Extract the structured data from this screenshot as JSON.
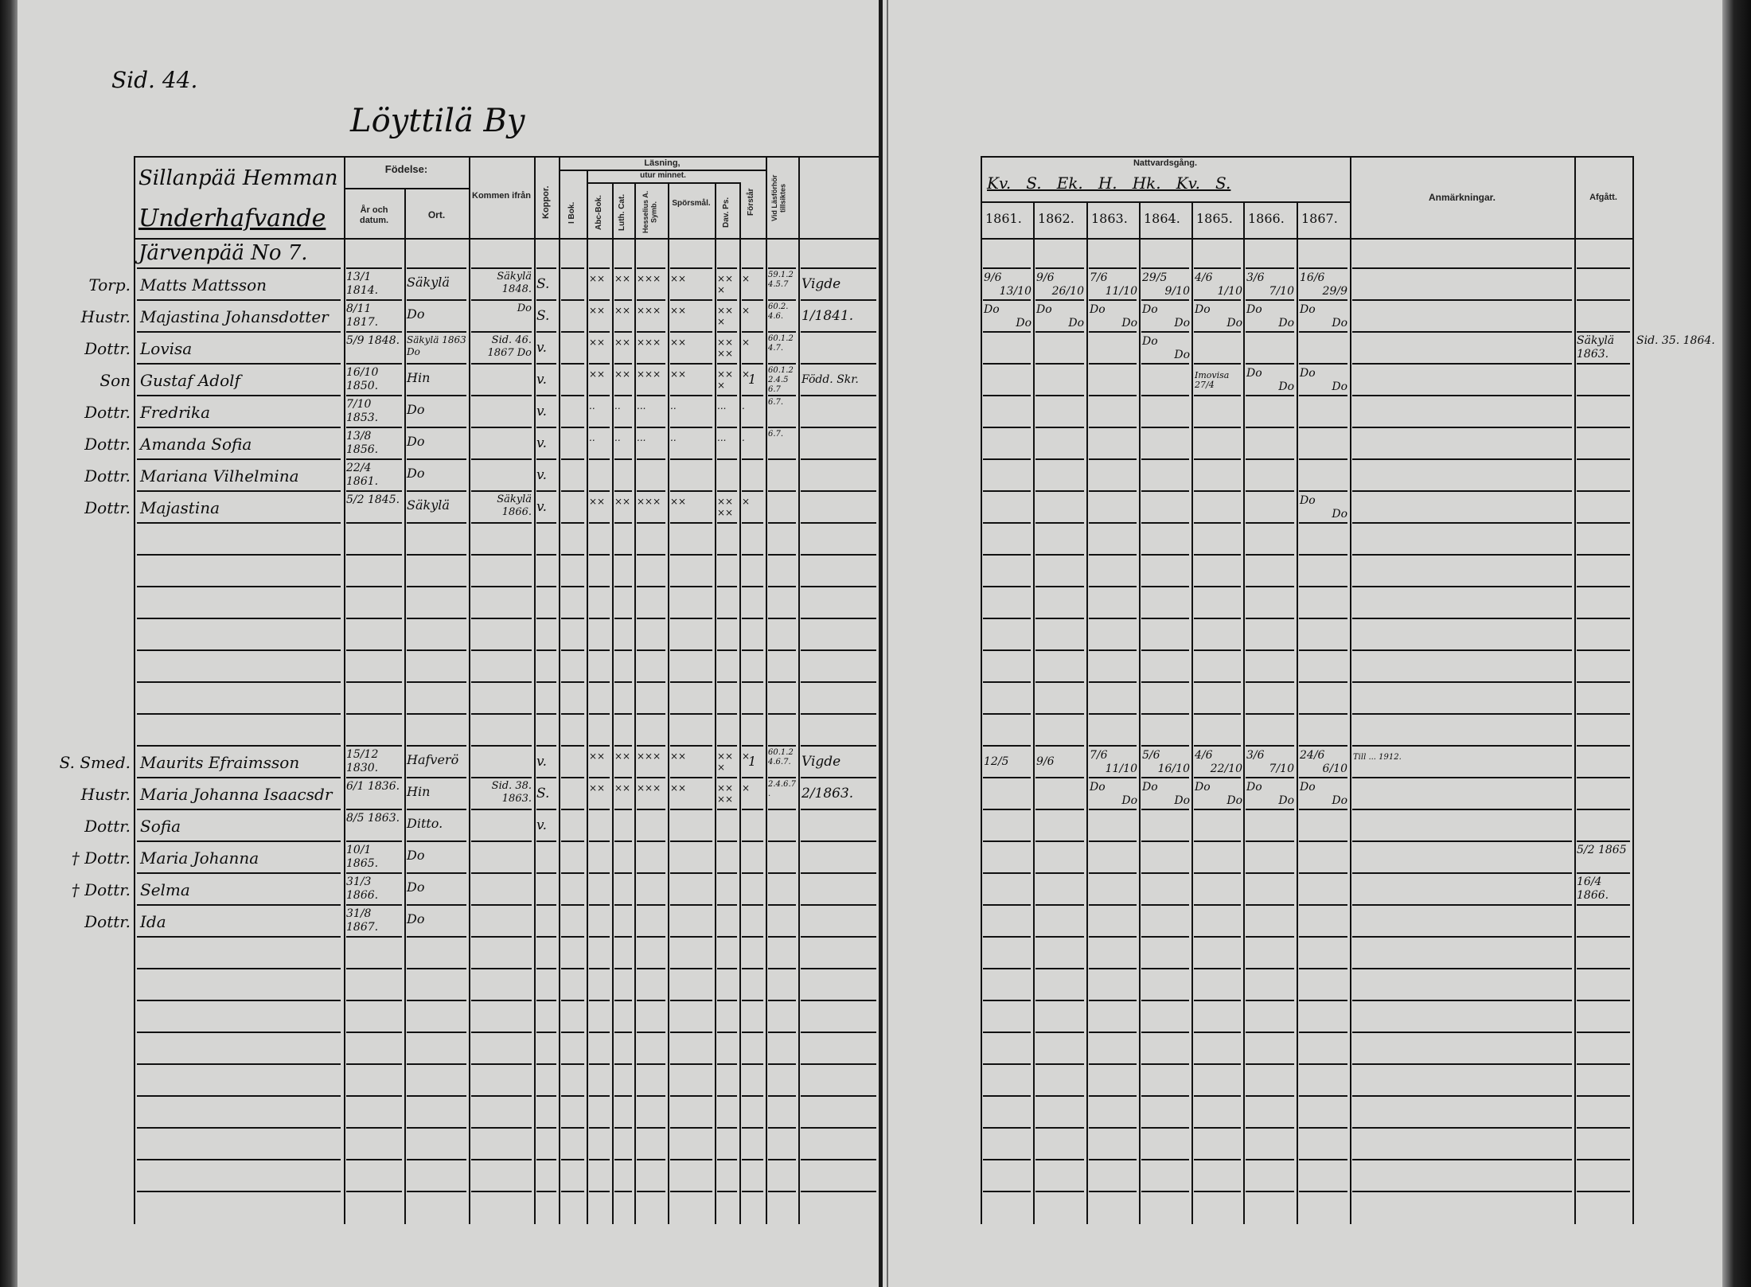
{
  "page_label": "Sid. 44.",
  "village": "Löyttilä By",
  "left_header": {
    "estate": "Sillanpää Hemman",
    "subtitle": "Underhafvande",
    "fodelse": "Födelse:",
    "ar_datum": "År och datum.",
    "ort": "Ort.",
    "kommen": "Kommen ifrån",
    "koppor": "Koppor.",
    "lasning": "Läsning,",
    "utur_minnet": "utur minnet.",
    "i_bok": "I Bok.",
    "abc_bok": "Abc-Bok.",
    "luth_cat": "Luth. Cat.",
    "hesselius": "Hesselius A. Symb.",
    "sporsmal": "Spörsmål.",
    "dav_ps": "Dav. Ps.",
    "forstar": "Förstår",
    "vid_lasforhor": "Vid Läsförhör tillsiktes"
  },
  "right_header": {
    "nattvardsgang": "Nattvardsgång.",
    "markers": "Kv.   S.   Ek.   H.   Hk.   Kv.   S.",
    "years": [
      "1861.",
      "1862.",
      "1863.",
      "1864.",
      "1865.",
      "1866.",
      "1867."
    ],
    "anmarkningar": "Anmärkningar.",
    "afgatt": "Afgått."
  },
  "groups": [
    {
      "title": "Järvenpää No 7.",
      "people": [
        {
          "role": "Torp.",
          "name": "Matts Mattsson",
          "birth": "13/1 1814.",
          "place": "Säkylä",
          "from": "Säkylä 1848.",
          "koppor": "S.",
          "reading": [
            "××",
            "××",
            "×××",
            "××",
            "×××",
            "×"
          ],
          "forstar": "",
          "vid": "59.1.2 4.5.7",
          "note": "Vigde",
          "communion": [
            [
              "9/6",
              "13/10"
            ],
            [
              "9/6",
              "26/10"
            ],
            [
              "7/6",
              "11/10"
            ],
            [
              "29/5",
              "9/10"
            ],
            [
              "4/6",
              "1/10"
            ],
            [
              "3/6",
              "7/10"
            ],
            [
              "16/6",
              "29/9"
            ]
          ],
          "remark": "",
          "departed": ""
        },
        {
          "role": "Hustr.",
          "name": "Majastina Johansdotter",
          "birth": "8/11 1817.",
          "place": "Do",
          "from": "Do",
          "koppor": "S.",
          "reading": [
            "××",
            "××",
            "×××",
            "××",
            "×××",
            "×"
          ],
          "forstar": "",
          "vid": "60.2. 4.6.",
          "note": "1/1841.",
          "communion": [
            [
              "Do",
              "Do"
            ],
            [
              "Do",
              "Do"
            ],
            [
              "Do",
              "Do"
            ],
            [
              "Do",
              "Do"
            ],
            [
              "Do",
              "Do"
            ],
            [
              "Do",
              "Do"
            ],
            [
              "Do",
              "Do"
            ]
          ],
          "remark": "",
          "departed": ""
        },
        {
          "role": "Dottr.",
          "name": "Lovisa",
          "birth": "5/9 1848.",
          "place": "Säkylä 1863 Do",
          "from": "Sid. 46. 1867 Do",
          "koppor": "v.",
          "reading": [
            "××",
            "××",
            "×××",
            "××",
            "××××",
            "×"
          ],
          "forstar": "",
          "vid": "60.1.2 4.7.",
          "note": "",
          "communion": [
            [
              "",
              ""
            ],
            [
              "",
              ""
            ],
            [
              "",
              ""
            ],
            [
              "Do",
              "Do"
            ],
            [
              "",
              ""
            ],
            [
              "",
              ""
            ],
            [
              "",
              ""
            ]
          ],
          "remark": "",
          "departed": "Säkylä 1863.",
          "departed_note": "Sid. 35. 1864."
        },
        {
          "role": "Son",
          "name": "Gustaf Adolf",
          "birth": "16/10 1850.",
          "place": "Hin",
          "from": "",
          "koppor": "v.",
          "reading": [
            "××",
            "××",
            "×××",
            "××",
            "×××",
            "×"
          ],
          "forstar": "1",
          "vid": "60.1.2 2.4.5 6.7",
          "note": "Född. Skr.",
          "communion": [
            [
              "",
              ""
            ],
            [
              "",
              ""
            ],
            [
              "",
              ""
            ],
            [
              "",
              ""
            ],
            [
              "Imovisa 27/4",
              ""
            ],
            [
              "Do",
              "Do"
            ],
            [
              "Do",
              "Do"
            ]
          ],
          "remark": "",
          "departed": ""
        },
        {
          "role": "Dottr.",
          "name": "Fredrika",
          "birth": "7/10 1853.",
          "place": "Do",
          "from": "",
          "koppor": "v.",
          "reading": [
            "..",
            "..",
            "...",
            "..",
            "...",
            "."
          ],
          "forstar": "",
          "vid": "6.7.",
          "note": "",
          "communion": [
            [
              "",
              ""
            ],
            [
              "",
              ""
            ],
            [
              "",
              ""
            ],
            [
              "",
              ""
            ],
            [
              "",
              ""
            ],
            [
              "",
              ""
            ],
            [
              "",
              ""
            ]
          ],
          "remark": "",
          "departed": ""
        },
        {
          "role": "Dottr.",
          "name": "Amanda Sofia",
          "birth": "13/8 1856.",
          "place": "Do",
          "from": "",
          "koppor": "v.",
          "reading": [
            "..",
            "..",
            "...",
            "..",
            "...",
            "."
          ],
          "forstar": "",
          "vid": "6.7.",
          "note": "",
          "communion": [
            [
              "",
              ""
            ],
            [
              "",
              ""
            ],
            [
              "",
              ""
            ],
            [
              "",
              ""
            ],
            [
              "",
              ""
            ],
            [
              "",
              ""
            ],
            [
              "",
              ""
            ]
          ],
          "remark": "",
          "departed": ""
        },
        {
          "role": "Dottr.",
          "name": "Mariana Vilhelmina",
          "birth": "22/4 1861.",
          "place": "Do",
          "from": "",
          "koppor": "v.",
          "reading": [
            "",
            "",
            "",
            "",
            "",
            ""
          ],
          "forstar": "",
          "vid": "",
          "note": "",
          "communion": [
            [
              "",
              ""
            ],
            [
              "",
              ""
            ],
            [
              "",
              ""
            ],
            [
              "",
              ""
            ],
            [
              "",
              ""
            ],
            [
              "",
              ""
            ],
            [
              "",
              ""
            ]
          ],
          "remark": "",
          "departed": ""
        },
        {
          "role": "Dottr.",
          "name": "Majastina",
          "birth": "5/2 1845.",
          "place": "Säkylä",
          "from": "Säkylä 1866.",
          "koppor": "v.",
          "reading": [
            "××",
            "××",
            "×××",
            "××",
            "××××",
            "×"
          ],
          "forstar": "",
          "vid": "",
          "note": "",
          "communion": [
            [
              "",
              ""
            ],
            [
              "",
              ""
            ],
            [
              "",
              ""
            ],
            [
              "",
              ""
            ],
            [
              "",
              ""
            ],
            [
              "",
              ""
            ],
            [
              "Do",
              "Do"
            ]
          ],
          "remark": "",
          "departed": ""
        }
      ]
    },
    {
      "title": "",
      "people": [
        {
          "role": "S. Smed.",
          "name": "Maurits Efraimsson",
          "birth": "15/12 1830.",
          "place": "Hafverö",
          "from": "",
          "koppor": "v.",
          "reading": [
            "××",
            "××",
            "×××",
            "××",
            "×××",
            "×"
          ],
          "forstar": "1",
          "vid": "60.1.2 4.6.7.",
          "note": "Vigde",
          "communion": [
            [
              "12/5",
              ""
            ],
            [
              "9/6",
              ""
            ],
            [
              "7/6",
              "11/10"
            ],
            [
              "5/6",
              "16/10"
            ],
            [
              "4/6",
              "22/10"
            ],
            [
              "3/6",
              "7/10"
            ],
            [
              "24/6",
              "6/10"
            ]
          ],
          "remark": "Till ... 1912.",
          "departed": ""
        },
        {
          "role": "Hustr.",
          "name": "Maria Johanna Isaacsdr",
          "birth": "6/1 1836.",
          "place": "Hin",
          "from": "Sid. 38. 1863.",
          "koppor": "S.",
          "reading": [
            "××",
            "××",
            "×××",
            "××",
            "××××",
            "×"
          ],
          "forstar": "",
          "vid": "2.4.6.7.",
          "note": "2/1863.",
          "communion": [
            [
              "",
              ""
            ],
            [
              "",
              ""
            ],
            [
              "Do",
              "Do"
            ],
            [
              "Do",
              "Do"
            ],
            [
              "Do",
              "Do"
            ],
            [
              "Do",
              "Do"
            ],
            [
              "Do",
              "Do"
            ]
          ],
          "remark": "",
          "departed": ""
        },
        {
          "role": "Dottr.",
          "name": "Sofia",
          "birth": "8/5 1863.",
          "place": "Ditto.",
          "from": "",
          "koppor": "v.",
          "reading": [
            "",
            "",
            "",
            "",
            "",
            ""
          ],
          "forstar": "",
          "vid": "",
          "note": "",
          "communion": [
            [
              "",
              ""
            ],
            [
              "",
              ""
            ],
            [
              "",
              ""
            ],
            [
              "",
              ""
            ],
            [
              "",
              ""
            ],
            [
              "",
              ""
            ],
            [
              "",
              ""
            ]
          ],
          "remark": "",
          "departed": ""
        },
        {
          "role": "† Dottr.",
          "name": "Maria Johanna",
          "birth": "10/1 1865.",
          "place": "Do",
          "from": "",
          "koppor": "",
          "reading": [
            "",
            "",
            "",
            "",
            "",
            ""
          ],
          "forstar": "",
          "vid": "",
          "note": "",
          "communion": [
            [
              "",
              ""
            ],
            [
              "",
              ""
            ],
            [
              "",
              ""
            ],
            [
              "",
              ""
            ],
            [
              "",
              ""
            ],
            [
              "",
              ""
            ],
            [
              "",
              ""
            ]
          ],
          "remark": "",
          "departed": "5/2 1865"
        },
        {
          "role": "† Dottr.",
          "name": "Selma",
          "birth": "31/3 1866.",
          "place": "Do",
          "from": "",
          "koppor": "",
          "reading": [
            "",
            "",
            "",
            "",
            "",
            ""
          ],
          "forstar": "",
          "vid": "",
          "note": "",
          "communion": [
            [
              "",
              ""
            ],
            [
              "",
              ""
            ],
            [
              "",
              ""
            ],
            [
              "",
              ""
            ],
            [
              "",
              ""
            ],
            [
              "",
              ""
            ],
            [
              "",
              ""
            ]
          ],
          "remark": "",
          "departed": "16/4 1866."
        },
        {
          "role": "Dottr.",
          "name": "Ida",
          "birth": "31/8 1867.",
          "place": "Do",
          "from": "",
          "koppor": "",
          "reading": [
            "",
            "",
            "",
            "",
            "",
            ""
          ],
          "forstar": "",
          "vid": "",
          "note": "",
          "communion": [
            [
              "",
              ""
            ],
            [
              "",
              ""
            ],
            [
              "",
              ""
            ],
            [
              "",
              ""
            ],
            [
              "",
              ""
            ],
            [
              "",
              ""
            ],
            [
              "",
              ""
            ]
          ],
          "remark": "",
          "departed": ""
        }
      ]
    }
  ]
}
